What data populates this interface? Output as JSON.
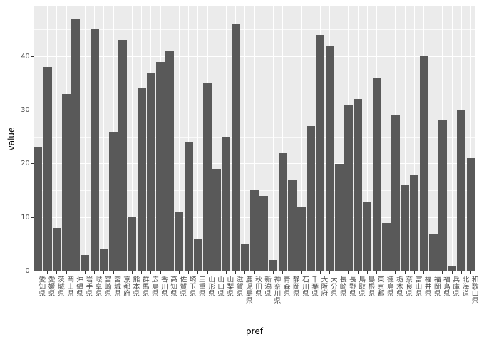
{
  "chart_data": {
    "type": "bar",
    "title": "",
    "xlabel": "pref",
    "ylabel": "value",
    "categories": [
      "愛知県",
      "愛媛県",
      "茨城県",
      "岡山県",
      "沖縄県",
      "岩手県",
      "岐阜県",
      "宮崎県",
      "宮城県",
      "京都府",
      "熊本県",
      "群馬県",
      "広島県",
      "香川県",
      "高知県",
      "佐賀県",
      "埼玉県",
      "三重県",
      "山形県",
      "山口県",
      "山梨県",
      "滋賀県",
      "鹿児島県",
      "秋田県",
      "新潟県",
      "神奈川県",
      "青森県",
      "静岡県",
      "石川県",
      "千葉県",
      "大阪府",
      "大分県",
      "長崎県",
      "長野県",
      "鳥取県",
      "島根県",
      "東京都",
      "徳島県",
      "栃木県",
      "奈良県",
      "富山県",
      "福井県",
      "福岡県",
      "福島県",
      "兵庫県",
      "北海道",
      "和歌山県"
    ],
    "values": [
      23,
      38,
      8,
      33,
      47,
      3,
      45,
      4,
      26,
      43,
      10,
      34,
      37,
      39,
      41,
      11,
      24,
      6,
      35,
      19,
      25,
      46,
      5,
      15,
      14,
      2,
      22,
      17,
      12,
      27,
      44,
      42,
      20,
      31,
      32,
      13,
      36,
      9,
      29,
      16,
      18,
      40,
      7,
      28,
      1,
      30,
      21
    ],
    "yticks": [
      0,
      10,
      20,
      30,
      40
    ],
    "yticks_minor": [
      5,
      15,
      25,
      35,
      45
    ],
    "ylim": [
      0,
      49.4
    ],
    "grid": true,
    "legend": false,
    "colors": {
      "bar": "#595959",
      "panel_bg": "#EBEBEB",
      "grid": "#FFFFFF",
      "axis_text": "#4D4D4D",
      "tick_mark": "#333333",
      "title_text": "#000000",
      "page_bg": "#FFFFFF"
    }
  }
}
